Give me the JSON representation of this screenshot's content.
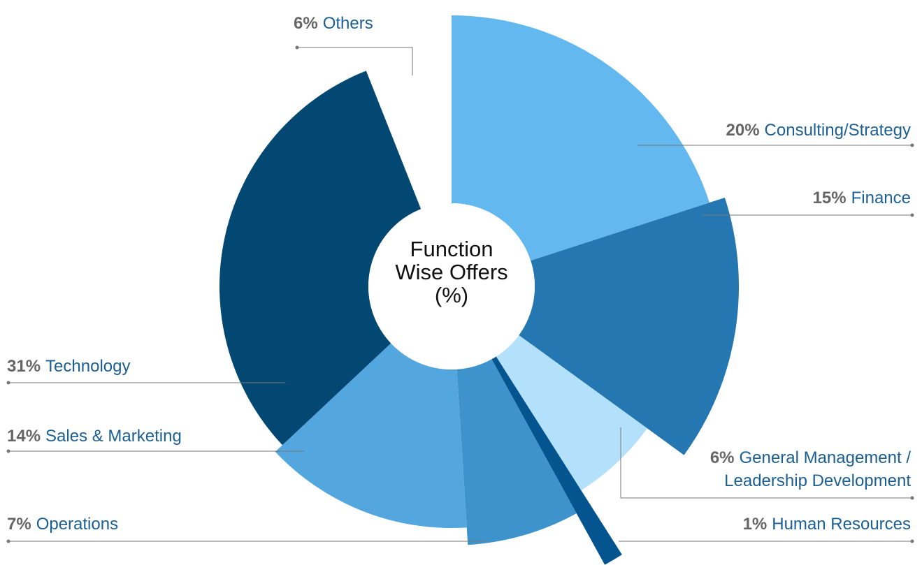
{
  "chart_data": {
    "type": "pie",
    "center_label": "Function Wise Offers (%)",
    "categories": [
      "Consulting/Strategy",
      "Finance",
      "General Management / Leadership Development",
      "Human Resources",
      "Operations",
      "Sales & Marketing",
      "Technology",
      "Others"
    ],
    "values": [
      20,
      15,
      6,
      1,
      7,
      14,
      31,
      6
    ],
    "value_labels": [
      "20%",
      "15%",
      "6%",
      "1%",
      "7%",
      "14%",
      "31%",
      "6%"
    ],
    "colors": [
      "#63b8ef",
      "#2477b0",
      "#b3e0fb",
      "#03548f",
      "#3f93cc",
      "#53a6de",
      "#034873",
      "#ffffff"
    ]
  }
}
